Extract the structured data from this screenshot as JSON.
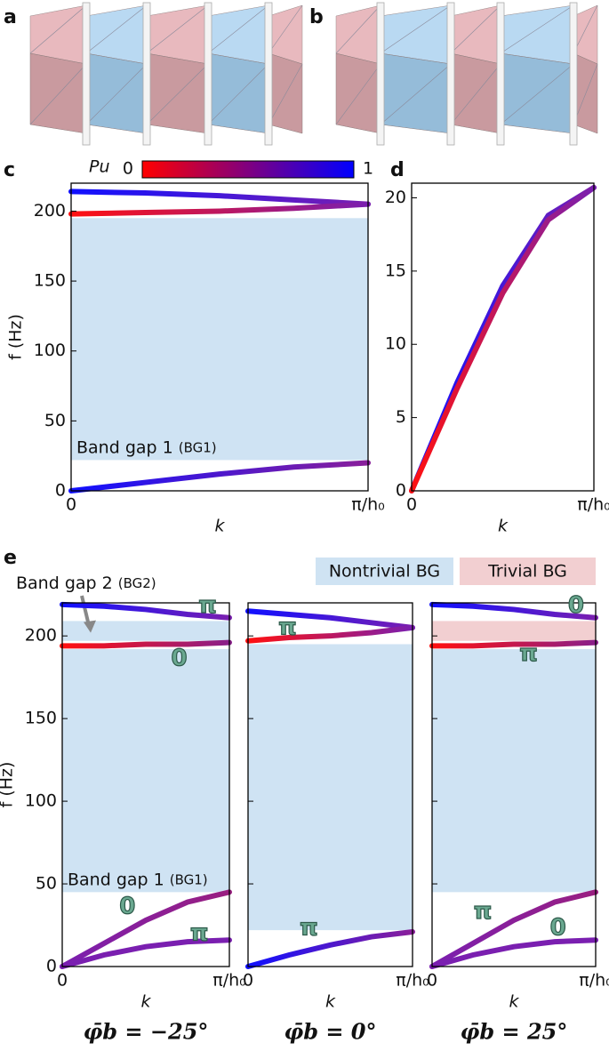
{
  "panel_labels": [
    "a",
    "b"
  ],
  "chart_data": [
    {
      "type": "line",
      "panel_label": "c",
      "ylabel": "f (Hz)",
      "xlabel": "k",
      "x": [
        0,
        0.25,
        0.5,
        0.75,
        1
      ],
      "xlim": [
        0,
        1
      ],
      "xticks": [
        {
          "value": 0,
          "label": "0"
        },
        {
          "value": 1,
          "label": "π/h₀"
        }
      ],
      "ylim": [
        0,
        220
      ],
      "yticks": [
        0,
        50,
        100,
        150,
        200
      ],
      "series": [
        {
          "values": [
            214,
            213,
            211,
            208,
            205
          ],
          "colors": [
            "#1010ff",
            "#7a1fb0"
          ]
        },
        {
          "values": [
            198,
            199,
            200,
            202,
            205
          ],
          "colors": [
            "#ff1010",
            "#7a1fb0"
          ]
        },
        {
          "values": [
            0,
            6,
            12,
            17,
            20
          ],
          "colors": [
            "#1010ff",
            "#8a1f9a"
          ]
        }
      ],
      "bands": [
        {
          "range": [
            22,
            195
          ],
          "color": "#cfe3f3",
          "label": "Band gap 1",
          "label_note": "(BG1)"
        }
      ],
      "colorbar": {
        "label": "Pu",
        "ticks": [
          0,
          1
        ],
        "colors": [
          "#ff0000",
          "#0000ff"
        ]
      }
    },
    {
      "type": "line",
      "panel_label": "d",
      "xlabel": "k",
      "x": [
        0,
        0.25,
        0.5,
        0.75,
        1
      ],
      "xlim": [
        0,
        1
      ],
      "xticks": [
        {
          "value": 0,
          "label": "0"
        },
        {
          "value": 1,
          "label": "π/h₀"
        }
      ],
      "ylim": [
        0,
        21
      ],
      "yticks": [
        0,
        5,
        10,
        15,
        20
      ],
      "series": [
        {
          "values": [
            0,
            7.4,
            14,
            18.8,
            20.7
          ],
          "colors": [
            "#1010ff",
            "#7a1fb0"
          ]
        },
        {
          "values": [
            0,
            7,
            13.5,
            18.5,
            20.7
          ],
          "colors": [
            "#ff1010",
            "#7a1fb0"
          ]
        }
      ]
    },
    {
      "type": "line",
      "panel_label": "e",
      "ylabel": "f (Hz)",
      "xlabel": "k",
      "caption": "φ̄b = −25°",
      "x": [
        0,
        0.25,
        0.5,
        0.75,
        1
      ],
      "xlim": [
        0,
        1
      ],
      "xticks": [
        {
          "value": 0,
          "label": "0"
        },
        {
          "value": 1,
          "label": "π/h₀"
        }
      ],
      "ylim": [
        0,
        220
      ],
      "yticks": [
        0,
        50,
        100,
        150,
        200
      ],
      "series": [
        {
          "values": [
            219,
            218,
            216,
            213,
            211
          ],
          "colors": [
            "#1010ff",
            "#7a1fb0"
          ]
        },
        {
          "values": [
            194,
            194,
            195,
            195,
            196
          ],
          "colors": [
            "#ff1010",
            "#8a1f8a"
          ]
        },
        {
          "values": [
            0,
            14,
            28,
            39,
            45
          ],
          "colors": [
            "#7a1fb0",
            "#9a1f80"
          ]
        },
        {
          "values": [
            0,
            7,
            12,
            15,
            16
          ],
          "colors": [
            "#7a1fb0",
            "#7a1fb0"
          ]
        }
      ],
      "bands": [
        {
          "range": [
            45,
            192
          ],
          "color": "#cfe3f3",
          "label": "Band gap 1",
          "label_note": "(BG1)"
        },
        {
          "range": [
            197,
            209
          ],
          "color": "#cfe3f3",
          "label": "Band gap 2",
          "label_note": "(BG2)",
          "label_outside": true
        }
      ],
      "annotations": [
        {
          "text": "π",
          "x": 0.87,
          "y": 218
        },
        {
          "text": "0",
          "x": 0.7,
          "y": 186
        },
        {
          "text": "0",
          "x": 0.39,
          "y": 36
        },
        {
          "text": "π",
          "x": 0.82,
          "y": 20
        }
      ],
      "legend": [
        {
          "name": "Nontrivial BG",
          "color": "#cfe3f3"
        },
        {
          "name": "Trivial BG",
          "color": "#f2cfd1"
        }
      ]
    },
    {
      "type": "line",
      "xlabel": "k",
      "caption": "φ̄b = 0°",
      "x": [
        0,
        0.25,
        0.5,
        0.75,
        1
      ],
      "xlim": [
        0,
        1
      ],
      "xticks": [
        {
          "value": 0,
          "label": "0"
        },
        {
          "value": 1,
          "label": "π/h₀"
        }
      ],
      "ylim": [
        0,
        220
      ],
      "yticks": [
        0,
        50,
        100,
        150,
        200
      ],
      "show_ytick_labels": false,
      "series": [
        {
          "values": [
            215,
            213,
            211,
            208,
            205
          ],
          "colors": [
            "#1010ff",
            "#7a1fb0"
          ]
        },
        {
          "values": [
            197,
            199,
            200,
            202,
            205
          ],
          "colors": [
            "#ff1010",
            "#7a1fb0"
          ]
        },
        {
          "values": [
            0,
            7,
            13,
            18,
            21
          ],
          "colors": [
            "#1010ff",
            "#8a1f9a"
          ]
        }
      ],
      "bands": [
        {
          "range": [
            22,
            195
          ],
          "color": "#cfe3f3"
        }
      ],
      "annotations": [
        {
          "text": "π",
          "x": 0.24,
          "y": 205
        },
        {
          "text": "π",
          "x": 0.37,
          "y": 23
        }
      ]
    },
    {
      "type": "line",
      "xlabel": "k",
      "caption": "φ̄b = 25°",
      "x": [
        0,
        0.25,
        0.5,
        0.75,
        1
      ],
      "xlim": [
        0,
        1
      ],
      "xticks": [
        {
          "value": 0,
          "label": "0"
        },
        {
          "value": 1,
          "label": "π/h₀"
        }
      ],
      "ylim": [
        0,
        220
      ],
      "yticks": [
        0,
        50,
        100,
        150,
        200
      ],
      "show_ytick_labels": false,
      "series": [
        {
          "values": [
            219,
            218,
            216,
            213,
            211
          ],
          "colors": [
            "#1010ff",
            "#7a1fb0"
          ]
        },
        {
          "values": [
            194,
            194,
            195,
            195,
            196
          ],
          "colors": [
            "#ff1010",
            "#8a1f8a"
          ]
        },
        {
          "values": [
            0,
            14,
            28,
            39,
            45
          ],
          "colors": [
            "#7a1fb0",
            "#9a1f80"
          ]
        },
        {
          "values": [
            0,
            7,
            12,
            15,
            16
          ],
          "colors": [
            "#7a1fb0",
            "#7a1fb0"
          ]
        }
      ],
      "bands": [
        {
          "range": [
            45,
            192
          ],
          "color": "#cfe3f3"
        },
        {
          "range": [
            197,
            209
          ],
          "color": "#f2cfd1"
        }
      ],
      "annotations": [
        {
          "text": "0",
          "x": 0.88,
          "y": 218
        },
        {
          "text": "π",
          "x": 0.59,
          "y": 189
        },
        {
          "text": "π",
          "x": 0.31,
          "y": 33
        },
        {
          "text": "0",
          "x": 0.77,
          "y": 23
        }
      ]
    }
  ]
}
